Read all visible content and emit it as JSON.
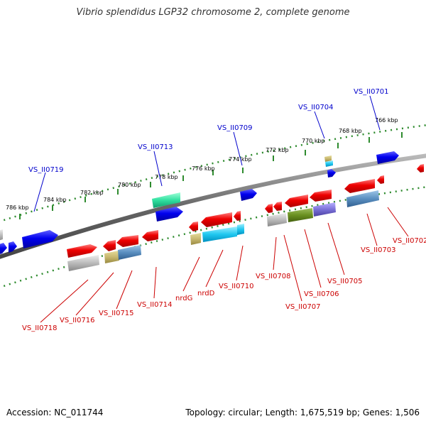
{
  "title": "Vibrio splendidus LGP32 chromosome 2, complete genome",
  "footer": {
    "accession": "Accession: NC_011744",
    "summary": "Topology: circular; Length: 1,675,519 bp; Genes: 1,506"
  },
  "colors": {
    "backbone": "#777777",
    "tick": "#2e8b2e",
    "upper_label": "#0000cc",
    "lower_label": "#cc0000"
  },
  "scale_ticks": [
    {
      "label": "786 kbp"
    },
    {
      "label": "784 kbp"
    },
    {
      "label": "782 kbp"
    },
    {
      "label": "780 kbp"
    },
    {
      "label": "778 kbp"
    },
    {
      "label": "776 kbp"
    },
    {
      "label": "774 kbp"
    },
    {
      "label": "772 kbp"
    },
    {
      "label": "770 kbp"
    },
    {
      "label": "768 kbp"
    },
    {
      "label": "766 kbp"
    }
  ],
  "upper_labels": [
    {
      "text": "VS_II0719"
    },
    {
      "text": "VS_II0713"
    },
    {
      "text": "VS_II0709"
    },
    {
      "text": "VS_II0704"
    },
    {
      "text": "VS_II0701"
    }
  ],
  "lower_labels": [
    {
      "text": "VS_II0718"
    },
    {
      "text": "VS_II0716"
    },
    {
      "text": "VS_II0715"
    },
    {
      "text": "VS_II0714"
    },
    {
      "text": "nrdG"
    },
    {
      "text": "nrdD"
    },
    {
      "text": "VS_II0710"
    },
    {
      "text": "VS_II0708"
    },
    {
      "text": "VS_II0707"
    },
    {
      "text": "VS_II0706"
    },
    {
      "text": "VS_II0705"
    },
    {
      "text": "VS_II0703"
    },
    {
      "text": "VS_II0702"
    }
  ]
}
